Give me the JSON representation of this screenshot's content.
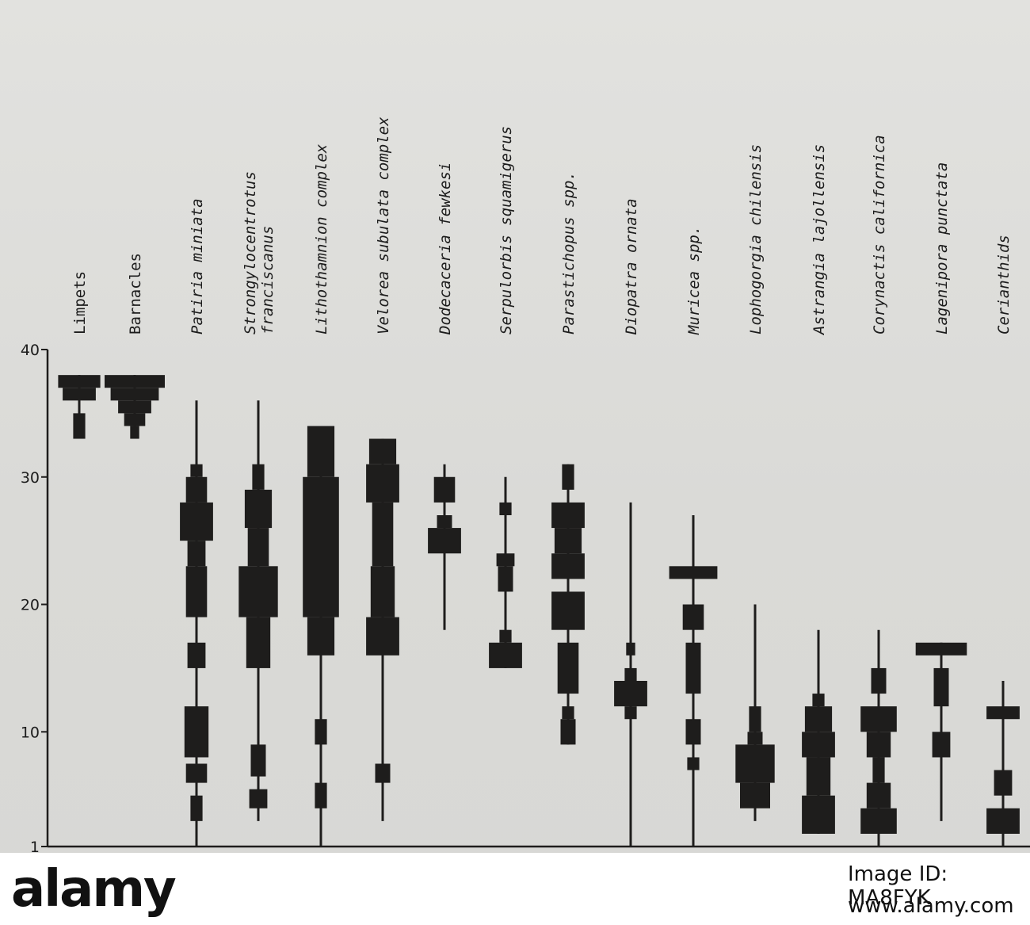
{
  "chart_data": {
    "type": "kite-diagram",
    "y_ticks": [
      "1",
      "10",
      "20",
      "30",
      "40"
    ],
    "ylim": [
      1,
      40
    ],
    "grid": false,
    "species": [
      {
        "name": "Limpets",
        "italic": false,
        "range": [
          33,
          38
        ],
        "bands": [
          [
            33,
            35,
            0.2
          ],
          [
            36,
            37,
            0.55
          ],
          [
            37,
            38,
            0.7
          ]
        ]
      },
      {
        "name": "Barnacles",
        "italic": false,
        "range": [
          33,
          38
        ],
        "bands": [
          [
            33,
            34,
            0.15
          ],
          [
            34,
            35,
            0.35
          ],
          [
            35,
            36,
            0.55
          ],
          [
            36,
            37,
            0.8
          ],
          [
            37,
            38,
            1.0
          ]
        ]
      },
      {
        "name": "Patiria miniata",
        "italic": true,
        "range": [
          1,
          36
        ],
        "bands": [
          [
            3,
            5,
            0.2
          ],
          [
            6,
            7.5,
            0.35
          ],
          [
            8,
            12,
            0.4
          ],
          [
            15,
            17,
            0.3
          ],
          [
            19,
            23,
            0.35
          ],
          [
            23,
            25,
            0.3
          ],
          [
            25,
            28,
            0.55
          ],
          [
            28,
            30,
            0.35
          ],
          [
            30,
            31,
            0.2
          ]
        ]
      },
      {
        "name": "Strongylocentrotus\nfranciscanus",
        "italic": true,
        "range": [
          3,
          36
        ],
        "bands": [
          [
            4,
            5.5,
            0.3
          ],
          [
            6.5,
            9,
            0.25
          ],
          [
            15,
            19,
            0.4
          ],
          [
            19,
            23,
            0.65
          ],
          [
            23,
            26,
            0.35
          ],
          [
            26,
            29,
            0.45
          ],
          [
            29,
            31,
            0.2
          ]
        ]
      },
      {
        "name": "Lithothamnion complex",
        "italic": true,
        "range": [
          1,
          34
        ],
        "bands": [
          [
            4,
            6,
            0.2
          ],
          [
            9,
            11,
            0.2
          ],
          [
            16,
            19,
            0.45
          ],
          [
            19,
            30,
            0.6
          ],
          [
            30,
            34,
            0.45
          ]
        ]
      },
      {
        "name": "Velorea subulata complex",
        "italic": true,
        "range": [
          3,
          33
        ],
        "bands": [
          [
            6,
            7.5,
            0.25
          ],
          [
            16,
            19,
            0.55
          ],
          [
            19,
            23,
            0.4
          ],
          [
            23,
            28,
            0.35
          ],
          [
            28,
            31,
            0.55
          ],
          [
            31,
            33,
            0.45
          ]
        ]
      },
      {
        "name": "Dodecaceria fewkesi",
        "italic": true,
        "range": [
          18,
          31
        ],
        "bands": [
          [
            24,
            26,
            0.55
          ],
          [
            26,
            27,
            0.25
          ],
          [
            28,
            30,
            0.35
          ]
        ]
      },
      {
        "name": "Serpulorbis squamigerus",
        "italic": true,
        "range": [
          15,
          30
        ],
        "bands": [
          [
            15,
            17,
            0.55
          ],
          [
            17,
            18,
            0.2
          ],
          [
            21,
            23,
            0.25
          ],
          [
            23,
            24,
            0.3
          ],
          [
            27,
            28,
            0.2
          ]
        ]
      },
      {
        "name": "Parastichopus spp.",
        "italic": true,
        "range": [
          9,
          31
        ],
        "bands": [
          [
            9,
            11,
            0.25
          ],
          [
            11,
            12,
            0.2
          ],
          [
            13,
            17,
            0.35
          ],
          [
            18,
            21,
            0.55
          ],
          [
            22,
            24,
            0.55
          ],
          [
            24,
            26,
            0.45
          ],
          [
            26,
            28,
            0.55
          ],
          [
            29,
            31,
            0.2
          ]
        ]
      },
      {
        "name": "Diopatra ornata",
        "italic": true,
        "range": [
          1,
          28
        ],
        "bands": [
          [
            11,
            12,
            0.2
          ],
          [
            12,
            14,
            0.55
          ],
          [
            14,
            15,
            0.2
          ],
          [
            16,
            17,
            0.15
          ]
        ]
      },
      {
        "name": "Muricea spp.",
        "italic": true,
        "range": [
          1,
          27
        ],
        "bands": [
          [
            7,
            8,
            0.2
          ],
          [
            9,
            11,
            0.25
          ],
          [
            13,
            17,
            0.25
          ],
          [
            18,
            20,
            0.35
          ],
          [
            22,
            23,
            0.8
          ]
        ]
      },
      {
        "name": "Lophogorgia chilensis",
        "italic": true,
        "range": [
          3,
          20
        ],
        "bands": [
          [
            4,
            6,
            0.5
          ],
          [
            6,
            9,
            0.65
          ],
          [
            9,
            10,
            0.25
          ],
          [
            10,
            12,
            0.2
          ]
        ]
      },
      {
        "name": "Astrangia lajollensis",
        "italic": true,
        "range": [
          2,
          18
        ],
        "bands": [
          [
            2,
            5,
            0.55
          ],
          [
            5,
            8,
            0.4
          ],
          [
            8,
            10,
            0.55
          ],
          [
            10,
            12,
            0.45
          ],
          [
            12,
            13,
            0.2
          ]
        ]
      },
      {
        "name": "Corynactis californica",
        "italic": true,
        "range": [
          1,
          18
        ],
        "bands": [
          [
            2,
            4,
            0.6
          ],
          [
            4,
            6,
            0.4
          ],
          [
            6,
            8,
            0.2
          ],
          [
            8,
            10,
            0.4
          ],
          [
            10,
            12,
            0.6
          ],
          [
            13,
            15,
            0.25
          ]
        ]
      },
      {
        "name": "Lagenipora punctata",
        "italic": true,
        "range": [
          3,
          17
        ],
        "bands": [
          [
            8,
            10,
            0.3
          ],
          [
            12,
            15,
            0.25
          ],
          [
            16,
            17,
            0.85
          ]
        ]
      },
      {
        "name": "Cerianthids",
        "italic": true,
        "range": [
          1,
          14
        ],
        "bands": [
          [
            2,
            4,
            0.55
          ],
          [
            5,
            7,
            0.3
          ],
          [
            11,
            12,
            0.55
          ]
        ]
      }
    ]
  },
  "watermark": {
    "logo": "alamy",
    "image_id": "Image ID: MA8FYK",
    "url": "www.alamy.com"
  }
}
